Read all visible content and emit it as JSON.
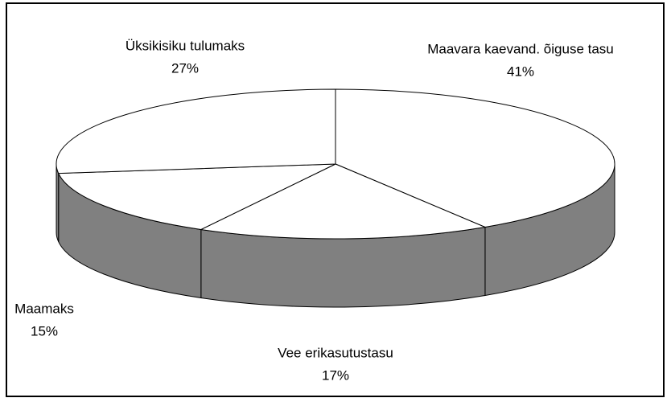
{
  "chart_data": {
    "type": "pie",
    "categories": [
      "Maavara kaevand. õiguse tasu",
      "Vee erikasutustasu",
      "Maamaks",
      "Üksikisiku tulumaks"
    ],
    "values": [
      41,
      17,
      15,
      27
    ],
    "value_labels": [
      "41%",
      "17%",
      "15%",
      "27%"
    ],
    "color": "#ffffff",
    "side_color": "#808080"
  }
}
